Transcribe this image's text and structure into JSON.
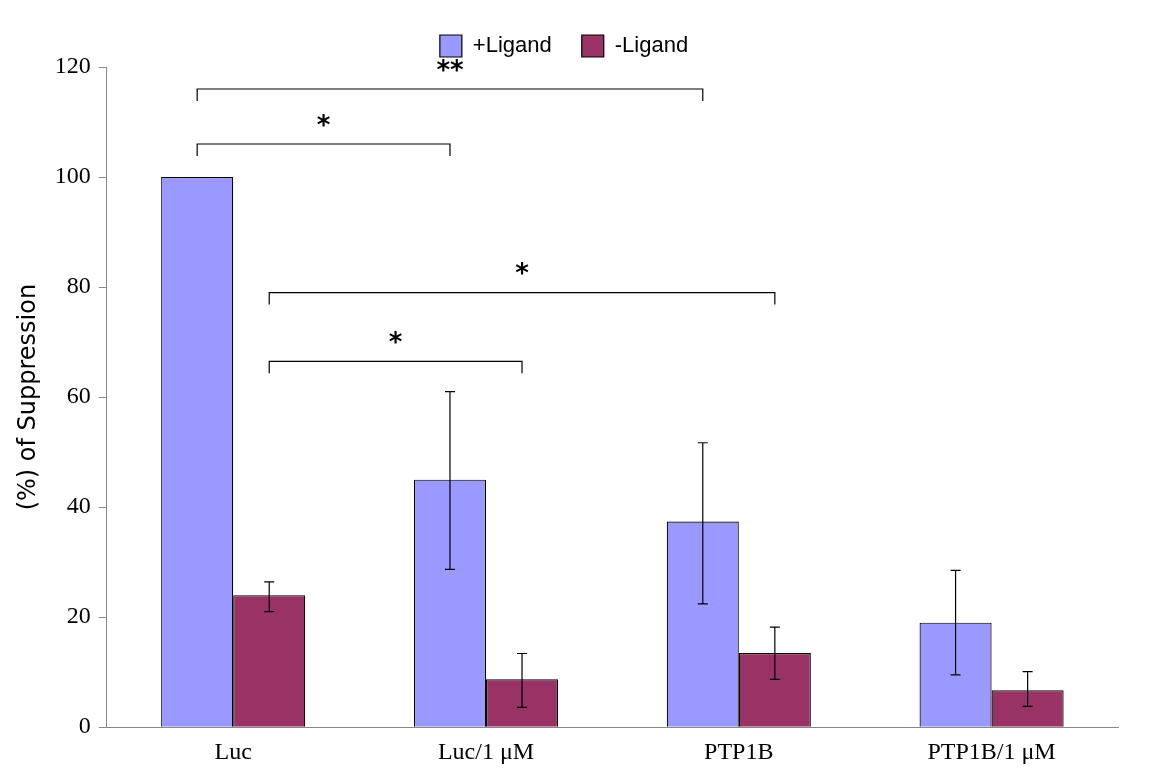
{
  "chart_data": {
    "type": "bar",
    "ylabel": "(%) of Suppression",
    "categories": [
      "Luc",
      "Luc/1 μM",
      "PTP1B",
      "PTP1B/1 μM"
    ],
    "series": [
      {
        "name": "+Ligand",
        "color": "#9999ff",
        "values": [
          100,
          45,
          37.4,
          19
        ],
        "errors": [
          null,
          [
            28.7,
            61
          ],
          [
            22.4,
            51.7
          ],
          [
            9.5,
            28.5
          ]
        ]
      },
      {
        "name": "-Ligand",
        "color": "#993366",
        "values": [
          24,
          8.7,
          13.5,
          6.7
        ],
        "errors": [
          [
            21,
            26.4
          ],
          [
            3.6,
            13.4
          ],
          [
            8.7,
            18.2
          ],
          [
            3.8,
            10.1
          ]
        ]
      }
    ],
    "ylim": [
      0,
      120
    ],
    "yticks": [
      0,
      20,
      40,
      60,
      80,
      100,
      120
    ],
    "grid": false,
    "legend": "top",
    "annotations": [
      "**",
      "*",
      "*",
      "*"
    ]
  }
}
